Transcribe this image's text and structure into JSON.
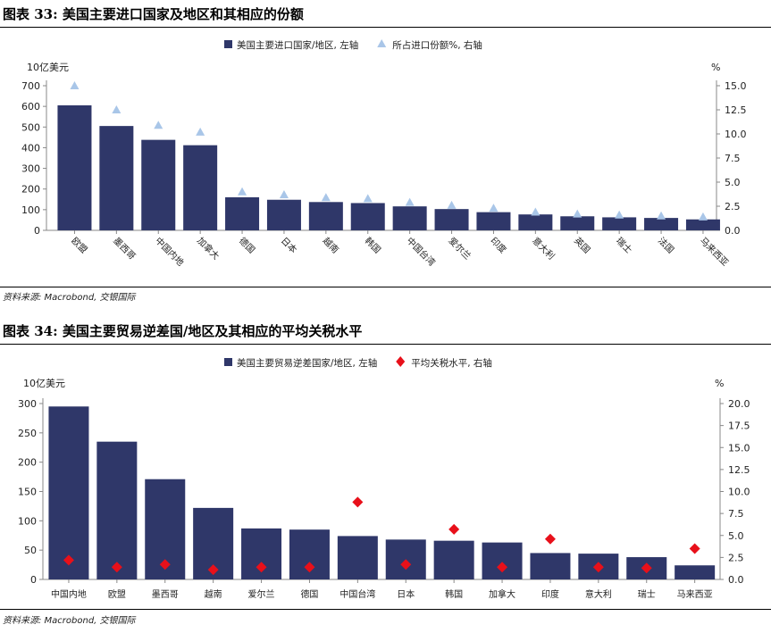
{
  "charts": [
    {
      "figure_title": "图表 33: 美国主要进口国家及地区和其相应的份额",
      "source": "资料来源: Macrobond, 交银国际",
      "chart_data": {
        "type": "bar",
        "categories": [
          "欧盟",
          "墨西哥",
          "中国内地",
          "加拿大",
          "德国",
          "日本",
          "越南",
          "韩国",
          "中国台湾",
          "爱尔兰",
          "印度",
          "意大利",
          "英国",
          "瑞士",
          "法国",
          "马来西亚"
        ],
        "series": [
          {
            "name": "美国主要进口国家/地区, 左轴",
            "type": "bar",
            "axis": "left",
            "color": "#2f3769",
            "values": [
              605,
              505,
              438,
              412,
              160,
              148,
              137,
              132,
              116,
              103,
              88,
              77,
              68,
              63,
              60,
              53
            ]
          },
          {
            "name": "所占进口份额%, 右轴",
            "type": "triangle",
            "axis": "right",
            "color": "#a9c6e8",
            "values": [
              15.0,
              12.5,
              10.9,
              10.2,
              4.0,
              3.7,
              3.4,
              3.3,
              2.9,
              2.6,
              2.3,
              1.9,
              1.7,
              1.6,
              1.5,
              1.4
            ]
          }
        ],
        "ylabel_left": "10亿美元",
        "ylabel_right": "%",
        "ylim_left": [
          0,
          700
        ],
        "ylim_right": [
          0,
          15.0
        ],
        "yticks_left": [
          "0",
          "100",
          "200",
          "300",
          "400",
          "500",
          "600",
          "700"
        ],
        "yticks_right": [
          "0.0",
          "2.5",
          "5.0",
          "7.5",
          "10.0",
          "12.5",
          "15.0"
        ],
        "legend_position": "top-center",
        "grid": false,
        "xtick_rotation": "rotated"
      }
    },
    {
      "figure_title": "图表 34: 美国主要贸易逆差国/地区及其相应的平均关税水平",
      "source": "资料来源: Macrobond, 交银国际",
      "chart_data": {
        "type": "bar",
        "categories": [
          "中国内地",
          "欧盟",
          "墨西哥",
          "越南",
          "爱尔兰",
          "德国",
          "中国台湾",
          "日本",
          "韩国",
          "加拿大",
          "印度",
          "意大利",
          "瑞士",
          "马来西亚"
        ],
        "series": [
          {
            "name": "美国主要贸易逆差国家/地区, 左轴",
            "type": "bar",
            "axis": "left",
            "color": "#2f3769",
            "values": [
              295,
              235,
              171,
              122,
              87,
              85,
              74,
              68,
              66,
              63,
              45,
              44,
              38,
              24
            ]
          },
          {
            "name": "平均关税水平, 右轴",
            "type": "diamond",
            "axis": "right",
            "color": "#e8101a",
            "values": [
              2.2,
              1.4,
              1.7,
              1.1,
              1.4,
              1.4,
              8.8,
              1.7,
              5.7,
              1.4,
              4.6,
              1.4,
              1.3,
              3.5
            ]
          }
        ],
        "ylabel_left": "10亿美元",
        "ylabel_right": "%",
        "ylim_left": [
          0,
          300
        ],
        "ylim_right": [
          0,
          20.0
        ],
        "yticks_left": [
          "0",
          "50",
          "100",
          "150",
          "200",
          "250",
          "300"
        ],
        "yticks_right": [
          "0.0",
          "2.5",
          "5.0",
          "7.5",
          "10.0",
          "12.5",
          "15.0",
          "17.5",
          "20.0"
        ],
        "legend_position": "top-center",
        "grid": false,
        "xtick_rotation": "horizontal"
      }
    }
  ]
}
